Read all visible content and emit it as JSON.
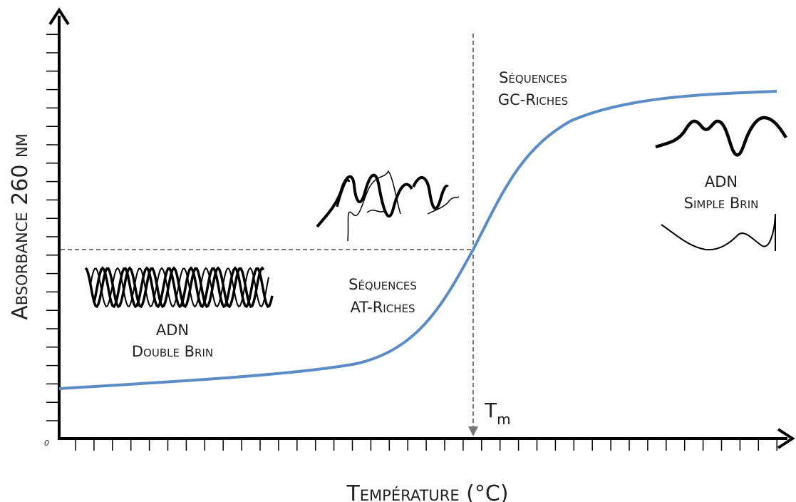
{
  "axes": {
    "y_label": "Absorbance 260 nm",
    "x_label": "Température (°C)",
    "origin": "0"
  },
  "melting_temperature": {
    "symbol": "T",
    "subscript": "m"
  },
  "annotations": {
    "gc_rich": {
      "line1": "Séquences",
      "line2": "GC-Riches"
    },
    "at_rich": {
      "line1": "Séquences",
      "line2": "AT-Riches"
    },
    "double_strand": {
      "line1": "ADN",
      "line2": "Double Brin"
    },
    "single_strand": {
      "line1": "ADN",
      "line2": "Simple Brin"
    }
  }
}
